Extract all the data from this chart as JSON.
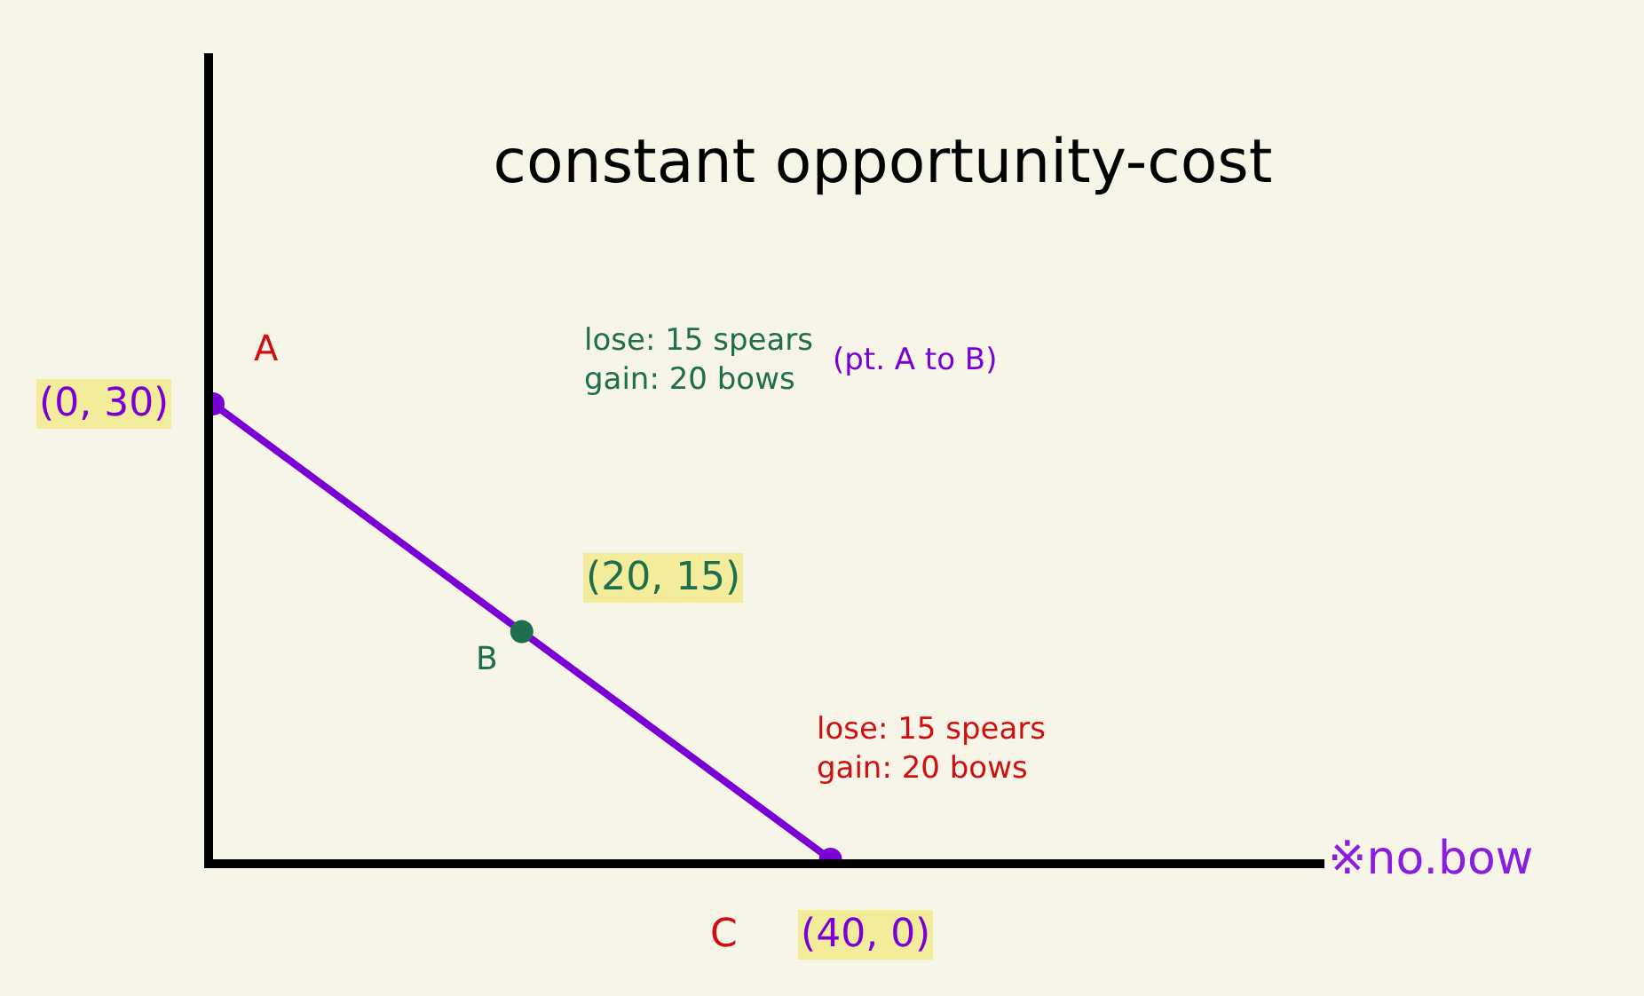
{
  "chart_data": {
    "type": "line",
    "title": "constant opportunity-cost",
    "categories": [
      null,
      null,
      null
    ],
    "series": [
      {
        "color": "#7b00d4",
        "colors": [
          "#7b00d4",
          "#1f6e4e",
          "#7b00d4"
        ],
        "values": [
          30,
          15,
          0
        ],
        "value_labels": [
          "(0, 30)",
          "(20, 15)",
          "(40, 0)"
        ]
      }
    ],
    "marker": "circle",
    "line_style": "solid",
    "annotations": [
      "A",
      "B",
      "C",
      "lose: 15 spears\ngain: 20 bows",
      "(pt. A to B)",
      "lose: 15 spears\ngain: 20 bows",
      "※no.bow"
    ]
  }
}
